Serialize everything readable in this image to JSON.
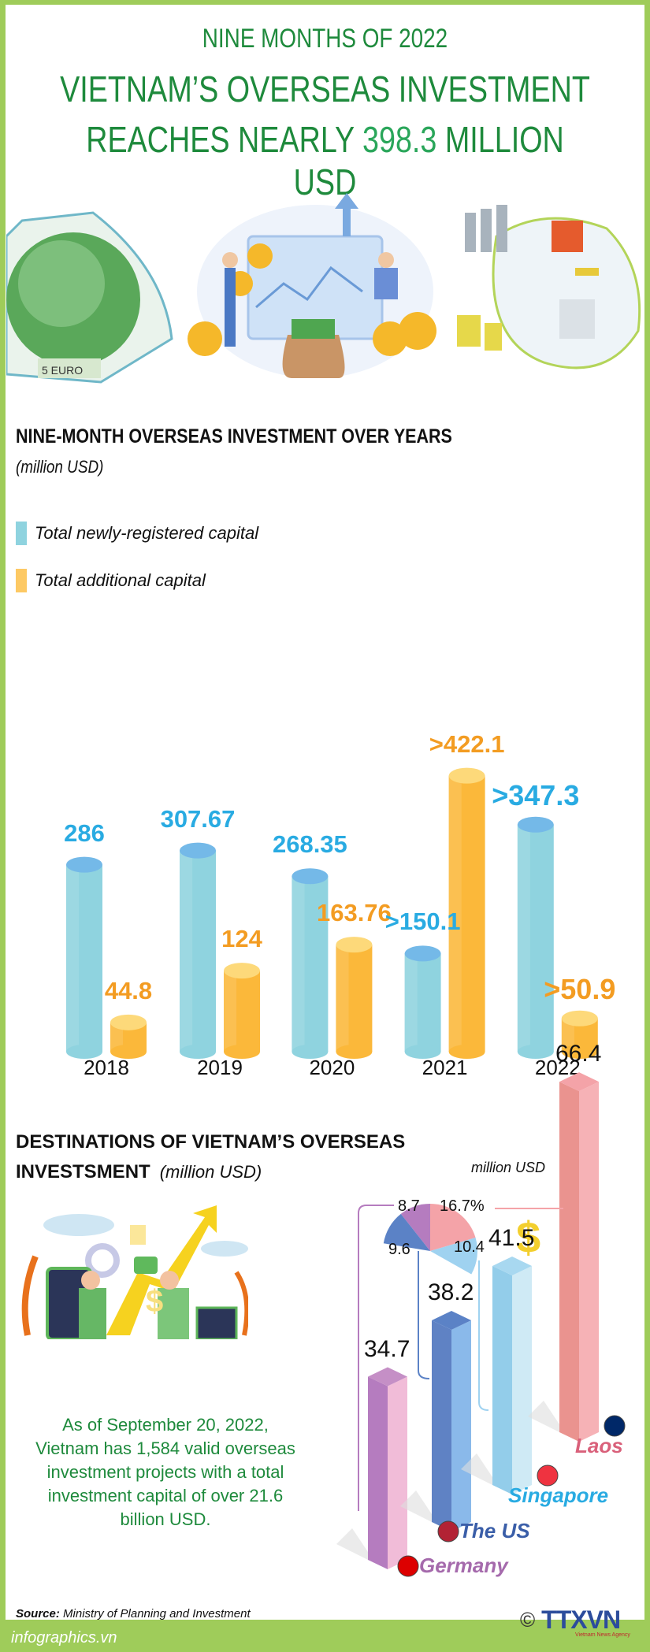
{
  "header": {
    "kicker": "NINE MONTHS OF 2022",
    "title_line1": "VIETNAM’S OVERSEAS INVESTMENT",
    "title_line2_prefix": "REACHES NEARLY ",
    "title_line2_highlight": "398.3",
    "title_line2_suffix": " MILLION USD"
  },
  "illustrations": {
    "left": "globe-money-icon",
    "center": "investors-coins-icon",
    "right": "factory-isometric-icon"
  },
  "colors": {
    "frame": "#9fcc5a",
    "title_green": "#1e8a3c",
    "new_capital": "#8fd3df",
    "new_capital_top": "#74b9e8",
    "new_capital_label": "#29abe2",
    "additional_capital": "#fbb83a",
    "additional_capital_top": "#fdd97a",
    "additional_capital_label": "#f39c22",
    "laos": "#f4a3a8",
    "singapore": "#a8d8f0",
    "us": "#5b82c6",
    "germany": "#c58fc6"
  },
  "chart_data": [
    {
      "type": "bar",
      "title": "NINE-MONTH OVERSEAS INVESTMENT OVER YEARS",
      "subtitle": "(million USD)",
      "xlabel": "",
      "ylabel": "",
      "legend_position": "top-left",
      "grid": false,
      "ylim": [
        0,
        440
      ],
      "categories": [
        "2018",
        "2019",
        "2020",
        "2021",
        "2022"
      ],
      "series": [
        {
          "name": "Total newly-registered capital",
          "values": [
            286,
            307.67,
            268.35,
            150.1,
            347.3
          ],
          "labels": [
            "286",
            "307.67",
            "268.35",
            ">150.1",
            ">347.3"
          ]
        },
        {
          "name": "Total additional capital",
          "values": [
            44.8,
            124,
            163.76,
            422.1,
            50.9
          ],
          "labels": [
            "44.8",
            "124",
            "163.76",
            ">422.1",
            ">50.9"
          ]
        }
      ]
    },
    {
      "type": "bar",
      "title": "DESTINATIONS OF VIETNAM’S OVERSEAS INVESTSMENT",
      "subtitle": "(million USD)",
      "unit_label": "million USD",
      "ylim": [
        0,
        70
      ],
      "categories": [
        "Germany",
        "The US",
        "Singapore",
        "Laos"
      ],
      "values": [
        34.7,
        38.2,
        41.5,
        66.4
      ],
      "labels": [
        "34.7",
        "38.2",
        "41.5",
        "66.4"
      ],
      "share_pie": {
        "type": "pie",
        "slices": [
          {
            "name": "Laos",
            "value": 16.7,
            "label": "16.7%"
          },
          {
            "name": "Singapore",
            "value": 10.4,
            "label": "10.4"
          },
          {
            "name": "The US",
            "value": 9.6,
            "label": "9.6"
          },
          {
            "name": "Germany",
            "value": 8.7,
            "label": "8.7"
          }
        ]
      }
    }
  ],
  "section2": {
    "title_line1": "DESTINATIONS OF VIETNAM’S OVERSEAS",
    "title_line2": "INVESTSMENT",
    "subtitle": "(million USD)",
    "illustration": "handshake-growth-icon"
  },
  "note": "As of September 20, 2022, Vietnam has 1,584 valid overseas investment projects with a total investment capital of over 21.6 billion USD.",
  "footer": {
    "source_label": "Source:",
    "source_text": " Ministry of Planning and Investment",
    "site": "infographics.vn",
    "copyright": "©",
    "logo": "TTXVN",
    "logo_sub": "Vietnam News Agency"
  }
}
